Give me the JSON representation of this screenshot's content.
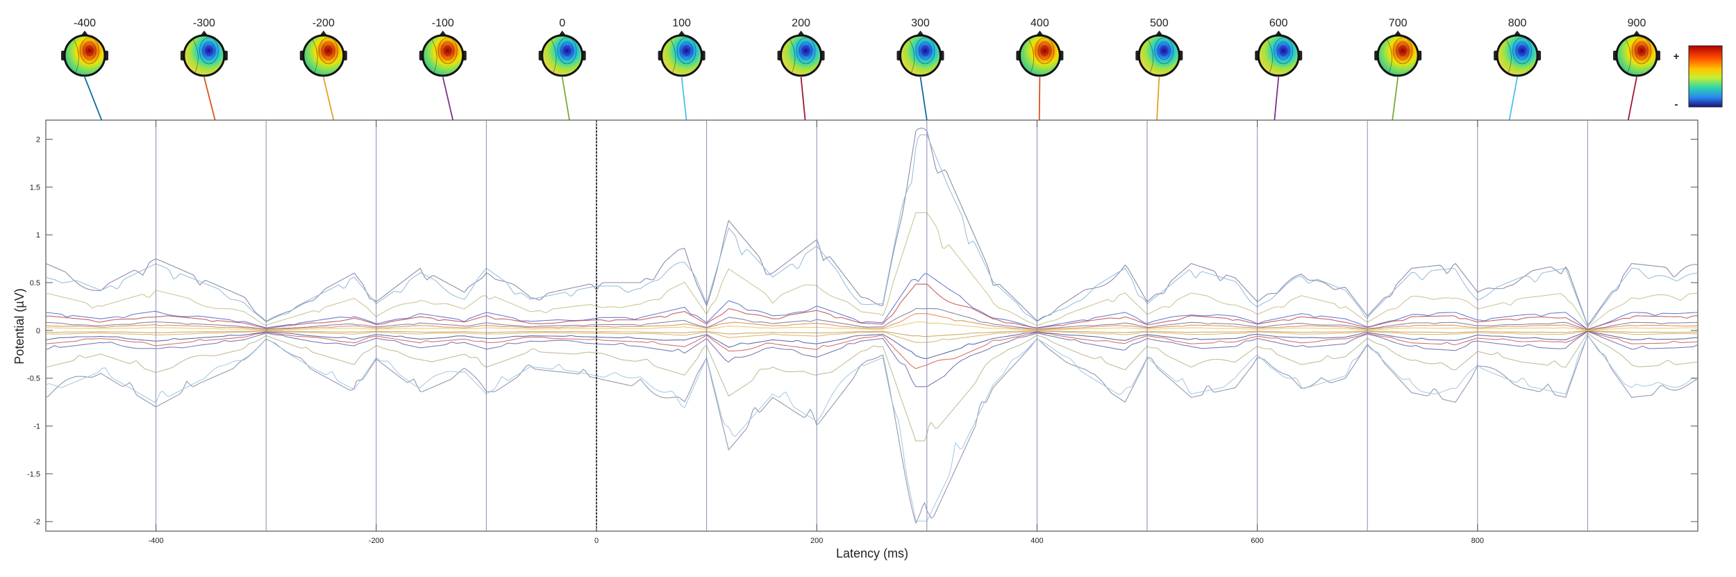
{
  "chart_data": {
    "type": "line",
    "title": "",
    "xlabel": "Latency (ms)",
    "ylabel": "Potential (µV)",
    "xlim": [
      -500,
      1000
    ],
    "ylim": [
      -2.1,
      2.2
    ],
    "xticks": [
      -400,
      -200,
      0,
      200,
      400,
      600,
      800
    ],
    "yticks": [
      2,
      1.5,
      1,
      0.5,
      0,
      -0.5,
      -1,
      -1.5,
      -2
    ],
    "grid": false,
    "event_marker_x": 0,
    "envelope": {
      "x": [
        -500,
        -450,
        -400,
        -360,
        -320,
        -300,
        -260,
        -220,
        -200,
        -160,
        -120,
        -100,
        -60,
        -20,
        0,
        40,
        80,
        100,
        120,
        160,
        200,
        240,
        260,
        290,
        300,
        320,
        360,
        400,
        440,
        480,
        500,
        540,
        580,
        600,
        640,
        680,
        700,
        740,
        780,
        800,
        840,
        880,
        900,
        940,
        980,
        1000
      ],
      "max": [
        0.7,
        0.45,
        0.75,
        0.55,
        0.35,
        0.1,
        0.35,
        0.6,
        0.3,
        0.65,
        0.4,
        0.7,
        0.35,
        0.45,
        0.5,
        0.5,
        0.9,
        0.3,
        1.15,
        0.6,
        0.95,
        0.35,
        0.3,
        2.2,
        2.2,
        1.6,
        0.55,
        0.1,
        0.4,
        0.7,
        0.3,
        0.7,
        0.55,
        0.3,
        0.65,
        0.45,
        0.15,
        0.65,
        0.7,
        0.4,
        0.6,
        0.7,
        0.05,
        0.7,
        0.65,
        0.7
      ],
      "min": [
        -0.7,
        -0.45,
        -0.8,
        -0.55,
        -0.35,
        -0.1,
        -0.4,
        -0.65,
        -0.3,
        -0.65,
        -0.45,
        -0.7,
        -0.4,
        -0.45,
        -0.5,
        -0.6,
        -0.85,
        -0.3,
        -1.25,
        -0.7,
        -1.0,
        -0.4,
        -0.3,
        -2.1,
        -2.1,
        -1.6,
        -0.6,
        -0.1,
        -0.45,
        -0.75,
        -0.3,
        -0.7,
        -0.6,
        -0.3,
        -0.65,
        -0.5,
        -0.15,
        -0.65,
        -0.75,
        -0.4,
        -0.6,
        -0.7,
        -0.05,
        -0.7,
        -0.65,
        -0.6
      ]
    },
    "channel_scales": [
      1.0,
      -1.0,
      0.93,
      -0.95,
      0.56,
      -0.55,
      0.27,
      -0.28,
      0.22,
      -0.2,
      0.12,
      -0.14,
      0.08,
      -0.06,
      0.04,
      -0.03
    ],
    "channel_colors": [
      "#7f7f9f",
      "#8a8aa8",
      "#8fb8d8",
      "#9ec6e0",
      "#c2c28a",
      "#b8b890",
      "#5b6fd0",
      "#6e6eb0",
      "#c0504d",
      "#d4605a",
      "#7a7a9a",
      "#4b5fa0",
      "#e08a50",
      "#d9b06a",
      "#e3c96b",
      "#c9a45c"
    ],
    "topo_maps": [
      {
        "latency": "-400",
        "polarity": "pos",
        "line_color": "#0a6aa8"
      },
      {
        "latency": "-300",
        "polarity": "neg",
        "line_color": "#d9541a"
      },
      {
        "latency": "-200",
        "polarity": "pos",
        "line_color": "#e0a51d"
      },
      {
        "latency": "-100",
        "polarity": "pos",
        "line_color": "#7e2f8e"
      },
      {
        "latency": "0",
        "polarity": "neg",
        "line_color": "#77ac30"
      },
      {
        "latency": "100",
        "polarity": "neg",
        "line_color": "#4dbeee"
      },
      {
        "latency": "200",
        "polarity": "neg",
        "line_color": "#a2142f"
      },
      {
        "latency": "300",
        "polarity": "neg",
        "line_color": "#0a6aa8"
      },
      {
        "latency": "400",
        "polarity": "pos",
        "line_color": "#d9541a"
      },
      {
        "latency": "500",
        "polarity": "neg",
        "line_color": "#e0a51d"
      },
      {
        "latency": "600",
        "polarity": "neg",
        "line_color": "#7e2f8e"
      },
      {
        "latency": "700",
        "polarity": "pos",
        "line_color": "#77ac30"
      },
      {
        "latency": "800",
        "polarity": "neg",
        "line_color": "#4dbeee"
      },
      {
        "latency": "900",
        "polarity": "pos",
        "line_color": "#a2142f"
      }
    ],
    "colorbar": {
      "plus_label": "+",
      "minus_label": "-"
    }
  },
  "colors": {
    "axis": "#555555",
    "marker": "#000000",
    "text": "#222222"
  }
}
